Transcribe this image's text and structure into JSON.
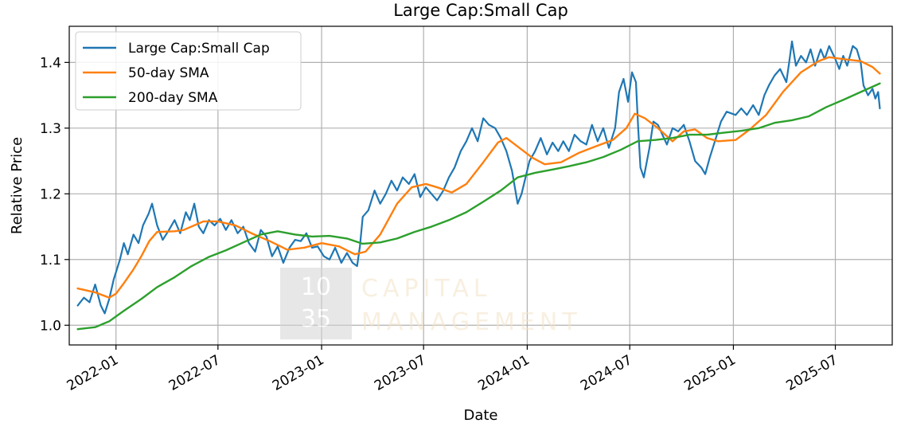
{
  "chart_data": {
    "type": "line",
    "title": "Large Cap:Small Cap",
    "xlabel": "Date",
    "ylabel": "Relative Price",
    "xlim": [
      "2021-10-10",
      "2025-10-10"
    ],
    "ylim": [
      0.97,
      1.455
    ],
    "grid": true,
    "legend_position": "top-left",
    "x_ticks": [
      {
        "date": "2022-01-01",
        "label": "2022-01"
      },
      {
        "date": "2022-07-01",
        "label": "2022-07"
      },
      {
        "date": "2023-01-01",
        "label": "2023-01"
      },
      {
        "date": "2023-07-01",
        "label": "2023-07"
      },
      {
        "date": "2024-01-01",
        "label": "2024-01"
      },
      {
        "date": "2024-07-01",
        "label": "2024-07"
      },
      {
        "date": "2025-01-01",
        "label": "2025-01"
      },
      {
        "date": "2025-07-01",
        "label": "2025-07"
      }
    ],
    "y_ticks": [
      {
        "value": 1.0,
        "label": "1.0"
      },
      {
        "value": 1.1,
        "label": "1.1"
      },
      {
        "value": 1.2,
        "label": "1.2"
      },
      {
        "value": 1.3,
        "label": "1.3"
      },
      {
        "value": 1.4,
        "label": "1.4"
      }
    ],
    "series": [
      {
        "name": "Large Cap:Small Cap",
        "color": "#1f77b4",
        "points": [
          [
            "2021-10-25",
            1.03
          ],
          [
            "2021-11-05",
            1.042
          ],
          [
            "2021-11-15",
            1.035
          ],
          [
            "2021-11-25",
            1.062
          ],
          [
            "2021-12-05",
            1.03
          ],
          [
            "2021-12-12",
            1.018
          ],
          [
            "2021-12-20",
            1.04
          ],
          [
            "2021-12-28",
            1.07
          ],
          [
            "2022-01-08",
            1.1
          ],
          [
            "2022-01-15",
            1.125
          ],
          [
            "2022-01-22",
            1.108
          ],
          [
            "2022-02-01",
            1.138
          ],
          [
            "2022-02-10",
            1.125
          ],
          [
            "2022-02-18",
            1.152
          ],
          [
            "2022-02-28",
            1.17
          ],
          [
            "2022-03-06",
            1.185
          ],
          [
            "2022-03-15",
            1.152
          ],
          [
            "2022-03-25",
            1.13
          ],
          [
            "2022-04-05",
            1.145
          ],
          [
            "2022-04-15",
            1.16
          ],
          [
            "2022-04-25",
            1.14
          ],
          [
            "2022-05-05",
            1.172
          ],
          [
            "2022-05-12",
            1.16
          ],
          [
            "2022-05-20",
            1.185
          ],
          [
            "2022-05-28",
            1.15
          ],
          [
            "2022-06-05",
            1.14
          ],
          [
            "2022-06-15",
            1.16
          ],
          [
            "2022-06-25",
            1.152
          ],
          [
            "2022-07-05",
            1.162
          ],
          [
            "2022-07-15",
            1.145
          ],
          [
            "2022-07-25",
            1.16
          ],
          [
            "2022-08-05",
            1.14
          ],
          [
            "2022-08-15",
            1.15
          ],
          [
            "2022-08-25",
            1.125
          ],
          [
            "2022-09-05",
            1.112
          ],
          [
            "2022-09-15",
            1.145
          ],
          [
            "2022-09-25",
            1.135
          ],
          [
            "2022-10-05",
            1.105
          ],
          [
            "2022-10-15",
            1.12
          ],
          [
            "2022-10-25",
            1.095
          ],
          [
            "2022-11-05",
            1.118
          ],
          [
            "2022-11-15",
            1.13
          ],
          [
            "2022-11-25",
            1.128
          ],
          [
            "2022-12-05",
            1.14
          ],
          [
            "2022-12-15",
            1.118
          ],
          [
            "2022-12-25",
            1.12
          ],
          [
            "2023-01-05",
            1.105
          ],
          [
            "2023-01-15",
            1.1
          ],
          [
            "2023-01-25",
            1.118
          ],
          [
            "2023-02-05",
            1.095
          ],
          [
            "2023-02-15",
            1.11
          ],
          [
            "2023-02-25",
            1.095
          ],
          [
            "2023-03-05",
            1.09
          ],
          [
            "2023-03-10",
            1.12
          ],
          [
            "2023-03-15",
            1.165
          ],
          [
            "2023-03-25",
            1.175
          ],
          [
            "2023-04-05",
            1.205
          ],
          [
            "2023-04-15",
            1.185
          ],
          [
            "2023-04-25",
            1.2
          ],
          [
            "2023-05-05",
            1.22
          ],
          [
            "2023-05-15",
            1.205
          ],
          [
            "2023-05-25",
            1.225
          ],
          [
            "2023-06-05",
            1.215
          ],
          [
            "2023-06-15",
            1.23
          ],
          [
            "2023-06-25",
            1.195
          ],
          [
            "2023-07-05",
            1.21
          ],
          [
            "2023-07-15",
            1.2
          ],
          [
            "2023-07-25",
            1.19
          ],
          [
            "2023-08-05",
            1.205
          ],
          [
            "2023-08-15",
            1.225
          ],
          [
            "2023-08-25",
            1.24
          ],
          [
            "2023-09-05",
            1.265
          ],
          [
            "2023-09-15",
            1.28
          ],
          [
            "2023-09-25",
            1.3
          ],
          [
            "2023-10-05",
            1.28
          ],
          [
            "2023-10-15",
            1.315
          ],
          [
            "2023-10-25",
            1.305
          ],
          [
            "2023-11-05",
            1.3
          ],
          [
            "2023-11-15",
            1.285
          ],
          [
            "2023-11-25",
            1.265
          ],
          [
            "2023-12-05",
            1.235
          ],
          [
            "2023-12-10",
            1.21
          ],
          [
            "2023-12-15",
            1.185
          ],
          [
            "2023-12-22",
            1.2
          ],
          [
            "2024-01-05",
            1.25
          ],
          [
            "2024-01-15",
            1.265
          ],
          [
            "2024-01-25",
            1.285
          ],
          [
            "2024-02-05",
            1.26
          ],
          [
            "2024-02-15",
            1.278
          ],
          [
            "2024-02-25",
            1.265
          ],
          [
            "2024-03-05",
            1.28
          ],
          [
            "2024-03-15",
            1.265
          ],
          [
            "2024-03-25",
            1.29
          ],
          [
            "2024-04-05",
            1.28
          ],
          [
            "2024-04-15",
            1.275
          ],
          [
            "2024-04-25",
            1.305
          ],
          [
            "2024-05-05",
            1.28
          ],
          [
            "2024-05-15",
            1.3
          ],
          [
            "2024-05-25",
            1.27
          ],
          [
            "2024-06-05",
            1.3
          ],
          [
            "2024-06-12",
            1.355
          ],
          [
            "2024-06-20",
            1.375
          ],
          [
            "2024-06-28",
            1.34
          ],
          [
            "2024-07-05",
            1.385
          ],
          [
            "2024-07-12",
            1.37
          ],
          [
            "2024-07-16",
            1.3
          ],
          [
            "2024-07-20",
            1.24
          ],
          [
            "2024-07-26",
            1.225
          ],
          [
            "2024-08-05",
            1.27
          ],
          [
            "2024-08-12",
            1.31
          ],
          [
            "2024-08-20",
            1.305
          ],
          [
            "2024-08-28",
            1.29
          ],
          [
            "2024-09-05",
            1.275
          ],
          [
            "2024-09-15",
            1.3
          ],
          [
            "2024-09-25",
            1.295
          ],
          [
            "2024-10-05",
            1.305
          ],
          [
            "2024-10-15",
            1.28
          ],
          [
            "2024-10-25",
            1.25
          ],
          [
            "2024-11-05",
            1.24
          ],
          [
            "2024-11-12",
            1.23
          ],
          [
            "2024-11-20",
            1.255
          ],
          [
            "2024-12-01",
            1.285
          ],
          [
            "2024-12-10",
            1.31
          ],
          [
            "2024-12-20",
            1.325
          ],
          [
            "2025-01-05",
            1.32
          ],
          [
            "2025-01-15",
            1.33
          ],
          [
            "2025-01-25",
            1.32
          ],
          [
            "2025-02-05",
            1.335
          ],
          [
            "2025-02-15",
            1.32
          ],
          [
            "2025-02-25",
            1.35
          ],
          [
            "2025-03-05",
            1.365
          ],
          [
            "2025-03-15",
            1.38
          ],
          [
            "2025-03-25",
            1.39
          ],
          [
            "2025-04-05",
            1.37
          ],
          [
            "2025-04-10",
            1.4
          ],
          [
            "2025-04-15",
            1.432
          ],
          [
            "2025-04-22",
            1.395
          ],
          [
            "2025-05-01",
            1.41
          ],
          [
            "2025-05-10",
            1.4
          ],
          [
            "2025-05-18",
            1.42
          ],
          [
            "2025-05-26",
            1.395
          ],
          [
            "2025-06-05",
            1.42
          ],
          [
            "2025-06-12",
            1.405
          ],
          [
            "2025-06-20",
            1.425
          ],
          [
            "2025-07-01",
            1.405
          ],
          [
            "2025-07-08",
            1.39
          ],
          [
            "2025-07-15",
            1.41
          ],
          [
            "2025-07-22",
            1.395
          ],
          [
            "2025-08-01",
            1.425
          ],
          [
            "2025-08-08",
            1.42
          ],
          [
            "2025-08-15",
            1.4
          ],
          [
            "2025-08-20",
            1.365
          ],
          [
            "2025-08-28",
            1.35
          ],
          [
            "2025-09-05",
            1.36
          ],
          [
            "2025-09-10",
            1.345
          ],
          [
            "2025-09-15",
            1.355
          ],
          [
            "2025-09-18",
            1.33
          ]
        ]
      },
      {
        "name": "50-day SMA",
        "color": "#ff7f0e",
        "points": [
          [
            "2021-10-25",
            1.056
          ],
          [
            "2021-11-25",
            1.05
          ],
          [
            "2021-12-20",
            1.042
          ],
          [
            "2022-01-01",
            1.048
          ],
          [
            "2022-01-15",
            1.064
          ],
          [
            "2022-02-01",
            1.085
          ],
          [
            "2022-02-15",
            1.105
          ],
          [
            "2022-03-01",
            1.128
          ],
          [
            "2022-03-15",
            1.142
          ],
          [
            "2022-04-15",
            1.143
          ],
          [
            "2022-05-01",
            1.145
          ],
          [
            "2022-05-20",
            1.152
          ],
          [
            "2022-06-05",
            1.158
          ],
          [
            "2022-07-01",
            1.158
          ],
          [
            "2022-08-01",
            1.152
          ],
          [
            "2022-09-01",
            1.139
          ],
          [
            "2022-10-01",
            1.128
          ],
          [
            "2022-11-01",
            1.115
          ],
          [
            "2022-12-01",
            1.118
          ],
          [
            "2023-01-01",
            1.125
          ],
          [
            "2023-02-01",
            1.12
          ],
          [
            "2023-03-01",
            1.108
          ],
          [
            "2023-03-20",
            1.112
          ],
          [
            "2023-04-15",
            1.138
          ],
          [
            "2023-05-15",
            1.185
          ],
          [
            "2023-06-10",
            1.21
          ],
          [
            "2023-07-05",
            1.215
          ],
          [
            "2023-07-25",
            1.21
          ],
          [
            "2023-08-20",
            1.202
          ],
          [
            "2023-09-15",
            1.215
          ],
          [
            "2023-10-15",
            1.248
          ],
          [
            "2023-11-10",
            1.278
          ],
          [
            "2023-11-25",
            1.285
          ],
          [
            "2023-12-15",
            1.272
          ],
          [
            "2024-01-10",
            1.255
          ],
          [
            "2024-02-01",
            1.245
          ],
          [
            "2024-03-01",
            1.248
          ],
          [
            "2024-04-01",
            1.262
          ],
          [
            "2024-05-01",
            1.272
          ],
          [
            "2024-06-01",
            1.282
          ],
          [
            "2024-06-25",
            1.3
          ],
          [
            "2024-07-10",
            1.322
          ],
          [
            "2024-07-28",
            1.315
          ],
          [
            "2024-08-20",
            1.3
          ],
          [
            "2024-09-15",
            1.28
          ],
          [
            "2024-10-05",
            1.295
          ],
          [
            "2024-10-25",
            1.298
          ],
          [
            "2024-11-15",
            1.285
          ],
          [
            "2024-12-05",
            1.28
          ],
          [
            "2025-01-05",
            1.282
          ],
          [
            "2025-01-30",
            1.298
          ],
          [
            "2025-02-28",
            1.32
          ],
          [
            "2025-03-30",
            1.355
          ],
          [
            "2025-05-01",
            1.385
          ],
          [
            "2025-06-01",
            1.402
          ],
          [
            "2025-06-20",
            1.408
          ],
          [
            "2025-07-15",
            1.405
          ],
          [
            "2025-08-15",
            1.402
          ],
          [
            "2025-09-05",
            1.393
          ],
          [
            "2025-09-18",
            1.383
          ]
        ]
      },
      {
        "name": "200-day SMA",
        "color": "#2ca02c",
        "points": [
          [
            "2021-10-25",
            0.994
          ],
          [
            "2021-11-25",
            0.997
          ],
          [
            "2021-12-20",
            1.006
          ],
          [
            "2022-01-15",
            1.022
          ],
          [
            "2022-02-15",
            1.04
          ],
          [
            "2022-03-15",
            1.058
          ],
          [
            "2022-04-15",
            1.073
          ],
          [
            "2022-05-15",
            1.09
          ],
          [
            "2022-06-15",
            1.104
          ],
          [
            "2022-07-15",
            1.114
          ],
          [
            "2022-08-15",
            1.126
          ],
          [
            "2022-09-15",
            1.138
          ],
          [
            "2022-10-15",
            1.143
          ],
          [
            "2022-11-15",
            1.138
          ],
          [
            "2022-12-15",
            1.135
          ],
          [
            "2023-01-15",
            1.136
          ],
          [
            "2023-02-15",
            1.132
          ],
          [
            "2023-03-15",
            1.124
          ],
          [
            "2023-04-15",
            1.126
          ],
          [
            "2023-05-15",
            1.132
          ],
          [
            "2023-06-15",
            1.142
          ],
          [
            "2023-07-15",
            1.15
          ],
          [
            "2023-08-15",
            1.16
          ],
          [
            "2023-09-15",
            1.172
          ],
          [
            "2023-10-15",
            1.188
          ],
          [
            "2023-11-15",
            1.205
          ],
          [
            "2023-12-15",
            1.225
          ],
          [
            "2024-01-15",
            1.232
          ],
          [
            "2024-02-15",
            1.237
          ],
          [
            "2024-03-15",
            1.242
          ],
          [
            "2024-04-15",
            1.248
          ],
          [
            "2024-05-15",
            1.256
          ],
          [
            "2024-06-15",
            1.267
          ],
          [
            "2024-07-15",
            1.28
          ],
          [
            "2024-08-15",
            1.282
          ],
          [
            "2024-09-15",
            1.285
          ],
          [
            "2024-10-15",
            1.29
          ],
          [
            "2024-11-15",
            1.29
          ],
          [
            "2024-12-15",
            1.293
          ],
          [
            "2025-01-15",
            1.296
          ],
          [
            "2025-02-15",
            1.3
          ],
          [
            "2025-03-15",
            1.308
          ],
          [
            "2025-04-15",
            1.312
          ],
          [
            "2025-05-15",
            1.318
          ],
          [
            "2025-06-15",
            1.332
          ],
          [
            "2025-07-15",
            1.343
          ],
          [
            "2025-08-15",
            1.355
          ],
          [
            "2025-09-18",
            1.368
          ]
        ]
      }
    ]
  },
  "watermark": {
    "logo_top": "10",
    "logo_bottom": "35",
    "line1": "CAPITAL",
    "line2": "MANAGEMENT"
  }
}
